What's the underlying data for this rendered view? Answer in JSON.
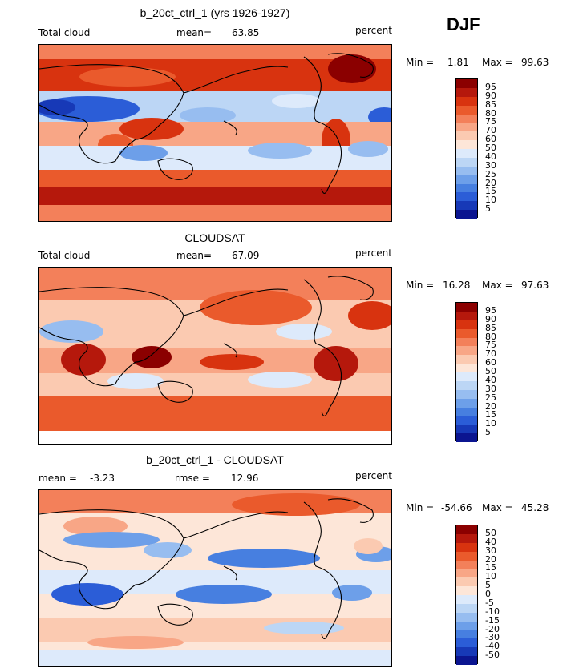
{
  "season": "DJF",
  "palette": {
    "pos": [
      "#8b0000",
      "#b5180c",
      "#d8330f",
      "#ea5a2c",
      "#f3805a",
      "#f8a686",
      "#fbcab1",
      "#fde6d8"
    ],
    "neg": [
      "#ddeafb",
      "#bcd6f5",
      "#97bdf0",
      "#6d9fe9",
      "#477fe0",
      "#2b5dd7",
      "#1739b7",
      "#0b1590"
    ]
  },
  "panels": [
    {
      "title": "b_20ct_ctrl_1 (yrs 1926-1927)",
      "left_label": "Total cloud",
      "center_label": "mean=",
      "center_value": "63.85",
      "right_label": "percent",
      "min_label": "Min =",
      "min_value": "1.81",
      "max_label": "Max =",
      "max_value": "99.63",
      "colorbar_labels": [
        "95",
        "90",
        "85",
        "80",
        "75",
        "70",
        "60",
        "50",
        "40",
        "30",
        "25",
        "20",
        "15",
        "10",
        "5"
      ]
    },
    {
      "title": "CLOUDSAT",
      "left_label": "Total cloud",
      "center_label": "mean=",
      "center_value": "67.09",
      "right_label": "percent",
      "min_label": "Min =",
      "min_value": "16.28",
      "max_label": "Max =",
      "max_value": "97.63",
      "colorbar_labels": [
        "95",
        "90",
        "85",
        "80",
        "75",
        "70",
        "60",
        "50",
        "40",
        "30",
        "25",
        "20",
        "15",
        "10",
        "5"
      ]
    },
    {
      "title": "b_20ct_ctrl_1 - CLOUDSAT",
      "left_label": "mean =",
      "left_value": "-3.23",
      "center_label": "rmse =",
      "center_value": "12.96",
      "right_label": "percent",
      "min_label": "Min =",
      "min_value": "-54.66",
      "max_label": "Max =",
      "max_value": "45.28",
      "colorbar_labels": [
        "50",
        "40",
        "30",
        "20",
        "15",
        "10",
        "5",
        "0",
        "-5",
        "-10",
        "-15",
        "-20",
        "-30",
        "-40",
        "-50"
      ]
    }
  ]
}
